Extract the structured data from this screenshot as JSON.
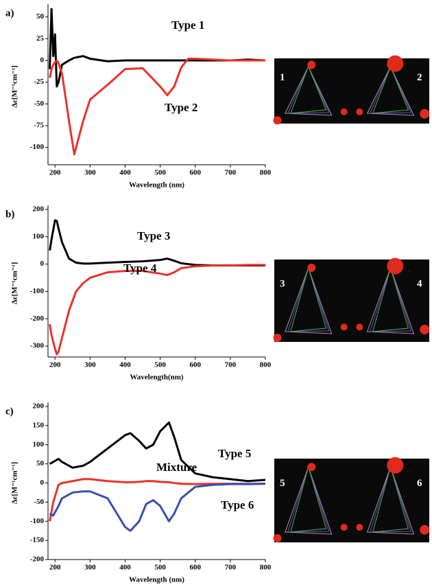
{
  "chart_data": [
    {
      "type": "line",
      "panel_label": "a)",
      "xlabel": "Wavelength (nm)",
      "ylabel": "Δε[M⁻¹cm⁻¹]",
      "xlim": [
        180,
        800
      ],
      "xticks": [
        200,
        300,
        400,
        500,
        600,
        700,
        800
      ],
      "ylim": [
        -120,
        60
      ],
      "yticks": [
        50,
        25,
        0,
        -25,
        -50,
        -75,
        -100
      ],
      "x": [
        185,
        190,
        195,
        200,
        205,
        210,
        220,
        240,
        255,
        280,
        300,
        350,
        400,
        450,
        500,
        520,
        540,
        560,
        580,
        600,
        650,
        700,
        750,
        800
      ],
      "series": [
        {
          "name": "Type 1",
          "color": "#000000",
          "values": [
            -10,
            60,
            5,
            30,
            -30,
            -25,
            -5,
            0,
            3,
            5,
            2,
            -1,
            0,
            0,
            0,
            0,
            0,
            0,
            0,
            0,
            0,
            0,
            1,
            0
          ]
        },
        {
          "name": "Type 2",
          "color": "#e8322a",
          "values": [
            -20,
            -10,
            -5,
            -2,
            0,
            -3,
            -15,
            -70,
            -108,
            -70,
            -45,
            -28,
            -10,
            -9,
            -30,
            -40,
            -30,
            -8,
            2,
            2,
            1,
            0,
            0,
            0
          ]
        }
      ],
      "image_labels": [
        "1",
        "2"
      ]
    },
    {
      "type": "line",
      "panel_label": "b)",
      "xlabel": "Wavelength(nm)",
      "ylabel": "Δε[M⁻¹cm⁻¹]",
      "xlim": [
        180,
        800
      ],
      "xticks": [
        200,
        300,
        400,
        500,
        600,
        700,
        800
      ],
      "ylim": [
        -340,
        200
      ],
      "yticks": [
        200,
        100,
        0,
        -100,
        -200,
        -300
      ],
      "x": [
        185,
        190,
        200,
        205,
        210,
        220,
        240,
        260,
        280,
        300,
        350,
        400,
        450,
        500,
        520,
        540,
        560,
        600,
        650,
        700,
        750,
        800
      ],
      "series": [
        {
          "name": "Type 3",
          "color": "#000000",
          "values": [
            50,
            90,
            160,
            158,
            130,
            80,
            20,
            5,
            2,
            2,
            5,
            8,
            10,
            15,
            20,
            12,
            3,
            -3,
            -5,
            -5,
            -5,
            -5
          ]
        },
        {
          "name": "Type 4",
          "color": "#e8322a",
          "values": [
            -220,
            -260,
            -310,
            -330,
            -320,
            -270,
            -170,
            -100,
            -70,
            -50,
            -30,
            -25,
            -25,
            -35,
            -40,
            -30,
            -15,
            -8,
            -5,
            -5,
            -3,
            -3
          ]
        }
      ],
      "image_labels": [
        "3",
        "4"
      ]
    },
    {
      "type": "line",
      "panel_label": "c)",
      "xlabel": "Wavelength (nm)",
      "ylabel": "Δε[M⁻¹cm⁻¹]",
      "xlim": [
        180,
        800
      ],
      "xticks": [
        200,
        300,
        400,
        500,
        600,
        700,
        800
      ],
      "ylim": [
        -200,
        200
      ],
      "yticks": [
        200,
        150,
        100,
        50,
        0,
        -50,
        -100,
        -150,
        -200
      ],
      "x": [
        185,
        195,
        210,
        220,
        250,
        280,
        300,
        350,
        400,
        415,
        440,
        460,
        480,
        500,
        525,
        540,
        560,
        600,
        650,
        700,
        750,
        800
      ],
      "series": [
        {
          "name": "Type 5",
          "color": "#000000",
          "values": [
            50,
            55,
            63,
            55,
            40,
            45,
            55,
            90,
            125,
            130,
            110,
            90,
            100,
            135,
            158,
            120,
            60,
            25,
            15,
            10,
            5,
            8
          ]
        },
        {
          "name": "Mixture",
          "color": "#e8322a",
          "values": [
            -100,
            -50,
            -5,
            0,
            5,
            10,
            10,
            5,
            2,
            2,
            3,
            5,
            5,
            3,
            2,
            0,
            -2,
            -3,
            -2,
            -2,
            -2,
            -2
          ]
        },
        {
          "name": "Type 6",
          "color": "#3a4fb0",
          "values": [
            -80,
            -85,
            -60,
            -40,
            -25,
            -22,
            -22,
            -40,
            -115,
            -125,
            -100,
            -55,
            -45,
            -60,
            -100,
            -80,
            -40,
            -10,
            -5,
            -3,
            -3,
            -2
          ]
        }
      ],
      "image_labels": [
        "5",
        "6"
      ]
    }
  ]
}
